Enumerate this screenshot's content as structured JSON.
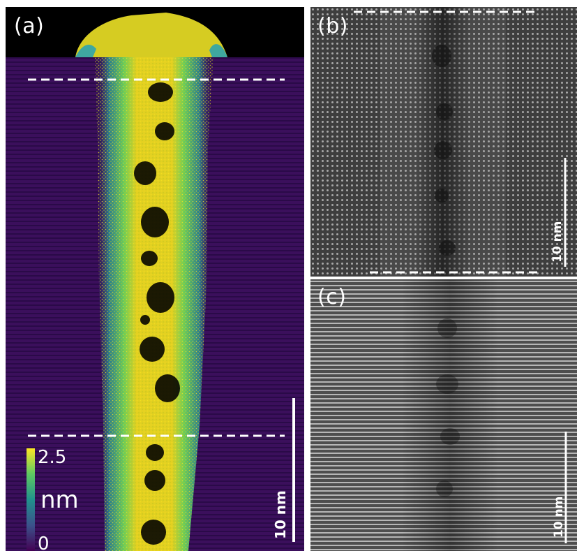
{
  "panels": {
    "a": {
      "label": "(a)",
      "scale_bar": "10 nm"
    },
    "b": {
      "label": "(b)",
      "scale_bar": "10 nm"
    },
    "c": {
      "label": "(c)",
      "scale_bar": "10 nm"
    }
  },
  "colorbar": {
    "max": "2.5",
    "unit": "nm",
    "min": "0"
  },
  "colors": {
    "substrate": "#3b0f5c",
    "feature": "#e3d021",
    "edge": "#22a884",
    "void": "#000000"
  }
}
